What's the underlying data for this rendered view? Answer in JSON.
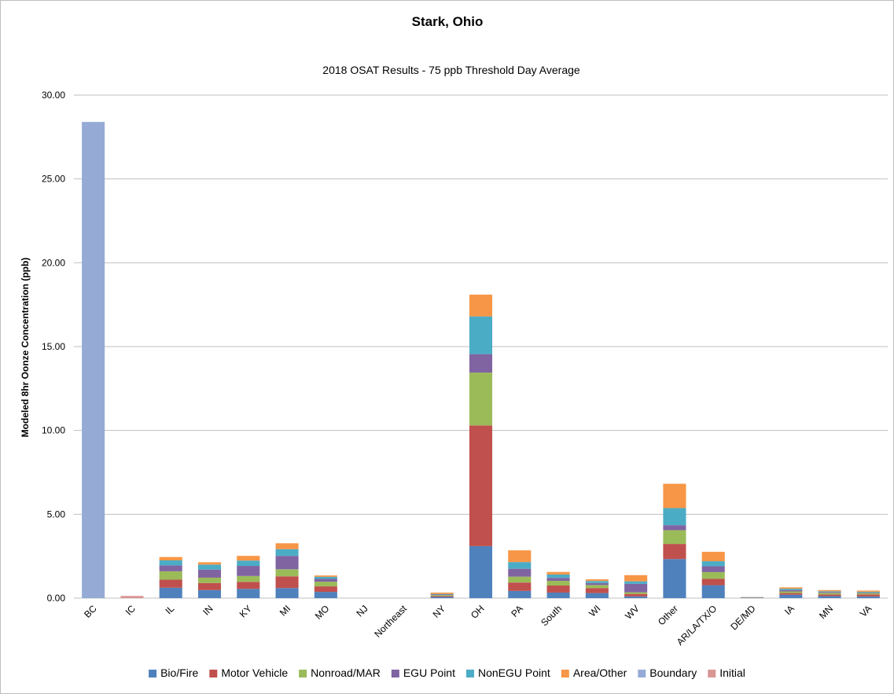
{
  "chart_data": {
    "type": "bar",
    "stacked": true,
    "title": "Stark, Ohio",
    "subtitle": "2018 OSAT Results - 75 ppb Threshold Day Average",
    "xlabel": "",
    "ylabel": "Modeled 8hr Oonze Concentration (ppb)",
    "ylim": [
      0,
      30
    ],
    "yticks": [
      "0.00",
      "5.00",
      "10.00",
      "15.00",
      "20.00",
      "25.00",
      "30.00"
    ],
    "grid": true,
    "legend_position": "bottom",
    "categories": [
      "BC",
      "IC",
      "IL",
      "IN",
      "KY",
      "MI",
      "MO",
      "NJ",
      "Northeast",
      "NY",
      "OH",
      "PA",
      "South",
      "WI",
      "WV",
      "Other",
      "AR/LA/TX/O",
      "DE/MD",
      "IA",
      "MN",
      "VA"
    ],
    "series": [
      {
        "name": "Bio/Fire",
        "color": "#4f81bd",
        "values": [
          0,
          0,
          0.62,
          0.48,
          0.55,
          0.6,
          0.37,
          0,
          0,
          0.07,
          3.1,
          0.43,
          0.33,
          0.3,
          0.1,
          2.33,
          0.77,
          0.02,
          0.2,
          0.12,
          0.1
        ]
      },
      {
        "name": "Motor Vehicle",
        "color": "#c0504d",
        "values": [
          0,
          0,
          0.48,
          0.42,
          0.42,
          0.7,
          0.33,
          0,
          0,
          0.05,
          7.2,
          0.5,
          0.42,
          0.3,
          0.15,
          0.9,
          0.38,
          0.01,
          0.1,
          0.1,
          0.12
        ]
      },
      {
        "name": "Nonroad/MAR",
        "color": "#9bbb59",
        "values": [
          0,
          0,
          0.5,
          0.32,
          0.35,
          0.42,
          0.28,
          0,
          0,
          0.06,
          3.15,
          0.35,
          0.28,
          0.18,
          0.1,
          0.82,
          0.4,
          0.01,
          0.1,
          0.09,
          0.08
        ]
      },
      {
        "name": "EGU Point",
        "color": "#8064a2",
        "values": [
          0,
          0,
          0.35,
          0.48,
          0.6,
          0.8,
          0.17,
          0,
          0,
          0.03,
          1.1,
          0.47,
          0.18,
          0.12,
          0.5,
          0.3,
          0.35,
          0.01,
          0.08,
          0.05,
          0.04
        ]
      },
      {
        "name": "NonEGU Point",
        "color": "#4bacc6",
        "values": [
          0,
          0,
          0.3,
          0.3,
          0.32,
          0.4,
          0.12,
          0,
          0,
          0.04,
          2.25,
          0.4,
          0.2,
          0.12,
          0.15,
          1.02,
          0.3,
          0.01,
          0.08,
          0.05,
          0.04
        ]
      },
      {
        "name": "Area/Other",
        "color": "#f79646",
        "values": [
          0,
          0,
          0.2,
          0.14,
          0.28,
          0.35,
          0.08,
          0,
          0,
          0.08,
          1.3,
          0.7,
          0.15,
          0.1,
          0.37,
          1.45,
          0.56,
          0.01,
          0.08,
          0.07,
          0.07
        ]
      },
      {
        "name": "Boundary",
        "color": "#95abd6",
        "values": [
          28.4,
          0,
          0,
          0,
          0,
          0,
          0,
          0,
          0,
          0,
          0,
          0,
          0,
          0,
          0,
          0,
          0,
          0,
          0,
          0,
          0
        ]
      },
      {
        "name": "Initial",
        "color": "#d99694",
        "values": [
          0,
          0.13,
          0,
          0,
          0,
          0,
          0,
          0,
          0,
          0,
          0,
          0,
          0,
          0,
          0,
          0,
          0,
          0,
          0,
          0,
          0
        ]
      }
    ]
  }
}
